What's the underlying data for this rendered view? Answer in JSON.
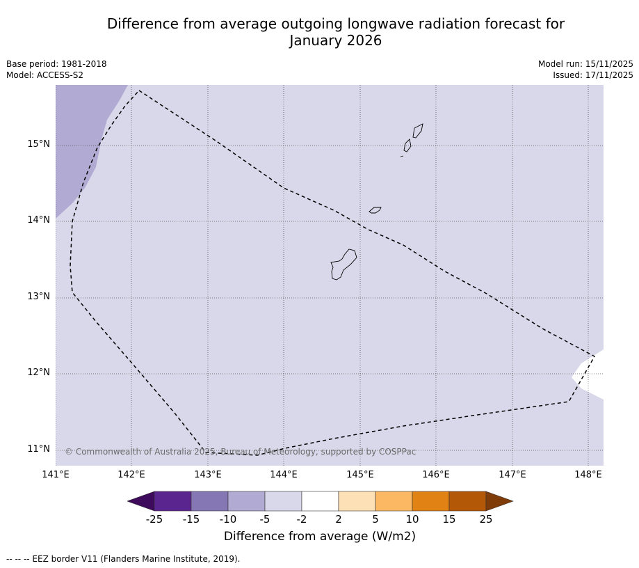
{
  "title": "Difference from average outgoing longwave radiation forecast for January 2026",
  "meta": {
    "base_period": "Base period: 1981-2018",
    "model": "Model: ACCESS-S2",
    "model_run": "Model run: 15/11/2025",
    "issued": "Issued: 17/11/2025"
  },
  "map": {
    "lat_labels": [
      "15°N",
      "14°N",
      "13°N",
      "12°N",
      "11°N"
    ],
    "lon_labels": [
      "141°E",
      "142°E",
      "143°E",
      "144°E",
      "145°E",
      "146°E",
      "147°E",
      "148°E"
    ],
    "copyright": "© Commonwealth of Australia 2025, Bureau of Meteorology, supported by COSPPac",
    "colors": {
      "background_anomaly": "#d8d8ea",
      "negative_patch": "#b1aad2",
      "neutral_patch": "#ffffff"
    }
  },
  "colorbar": {
    "ticks": [
      "-25",
      "-15",
      "-10",
      "-5",
      "-2",
      "2",
      "5",
      "10",
      "15",
      "25"
    ],
    "colors": [
      "#3e0a5c",
      "#5b2590",
      "#8577b4",
      "#b1aad2",
      "#d8d8ea",
      "#ffffff",
      "#fee0b6",
      "#fdb863",
      "#e08214",
      "#b35806",
      "#7f3b08"
    ],
    "label": "Difference from average (W/m2)"
  },
  "footer": "--  --  -- EEZ border V11 (Flanders Marine Institute, 2019)."
}
